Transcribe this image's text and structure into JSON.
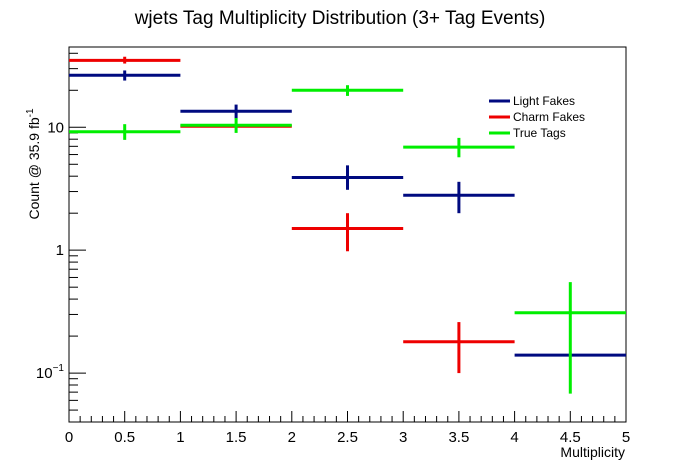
{
  "chart_data": {
    "type": "scatter",
    "title": "wjets Tag Multiplicity Distribution (3+ Tag Events)",
    "xlabel": "Multiplicity",
    "ylabel": "Count @ 35.9 fb",
    "ylabel_superscript": "-1",
    "xlim": [
      0,
      5
    ],
    "ylim": [
      0.04,
      45
    ],
    "yscale": "log",
    "grid": false,
    "legend_position": "top-right",
    "x_tick_labels": [
      "0",
      "0.5",
      "1",
      "1.5",
      "2",
      "2.5",
      "3",
      "3.5",
      "4",
      "4.5",
      "5"
    ],
    "y_tick_labels": [
      {
        "value": 0.1,
        "base": "10",
        "exponent": "−1"
      },
      {
        "value": 1,
        "base": "1",
        "exponent": ""
      },
      {
        "value": 10,
        "base": "10",
        "exponent": ""
      }
    ],
    "series": [
      {
        "name": "Light Fakes",
        "color": "#000a80",
        "points": [
          {
            "x": 0.5,
            "xlo": 0,
            "xhi": 1,
            "y": 26.5,
            "ylo": 24.0,
            "yhi": 29.0
          },
          {
            "x": 1.5,
            "xlo": 1,
            "xhi": 2,
            "y": 13.5,
            "ylo": 11.8,
            "yhi": 15.3
          },
          {
            "x": 2.5,
            "xlo": 2,
            "xhi": 3,
            "y": 3.9,
            "ylo": 3.1,
            "yhi": 4.9
          },
          {
            "x": 3.5,
            "xlo": 3,
            "xhi": 4,
            "y": 2.8,
            "ylo": 2.0,
            "yhi": 3.6
          },
          {
            "x": 4.5,
            "xlo": 4,
            "xhi": 5,
            "y": 0.14,
            "ylo": 0.14,
            "yhi": 0.14
          }
        ]
      },
      {
        "name": "Charm Fakes",
        "color": "#ee0000",
        "points": [
          {
            "x": 0.5,
            "xlo": 0,
            "xhi": 1,
            "y": 35.0,
            "ylo": 33.0,
            "yhi": 37.5
          },
          {
            "x": 1.5,
            "xlo": 1,
            "xhi": 2,
            "y": 10.2,
            "ylo": 10.2,
            "yhi": 10.2
          },
          {
            "x": 2.5,
            "xlo": 2,
            "xhi": 3,
            "y": 1.5,
            "ylo": 0.98,
            "yhi": 2.0
          },
          {
            "x": 3.5,
            "xlo": 3,
            "xhi": 4,
            "y": 0.18,
            "ylo": 0.1,
            "yhi": 0.26
          }
        ]
      },
      {
        "name": "True Tags",
        "color": "#00ee00",
        "points": [
          {
            "x": 0.5,
            "xlo": 0,
            "xhi": 1,
            "y": 9.2,
            "ylo": 7.9,
            "yhi": 10.6
          },
          {
            "x": 1.5,
            "xlo": 1,
            "xhi": 2,
            "y": 10.4,
            "ylo": 9.0,
            "yhi": 11.9
          },
          {
            "x": 2.5,
            "xlo": 2,
            "xhi": 3,
            "y": 20.0,
            "ylo": 18.0,
            "yhi": 22.0
          },
          {
            "x": 3.5,
            "xlo": 3,
            "xhi": 4,
            "y": 6.9,
            "ylo": 5.7,
            "yhi": 8.2
          },
          {
            "x": 4.5,
            "xlo": 4,
            "xhi": 5,
            "y": 0.31,
            "ylo": 0.068,
            "yhi": 0.55
          }
        ]
      }
    ]
  }
}
